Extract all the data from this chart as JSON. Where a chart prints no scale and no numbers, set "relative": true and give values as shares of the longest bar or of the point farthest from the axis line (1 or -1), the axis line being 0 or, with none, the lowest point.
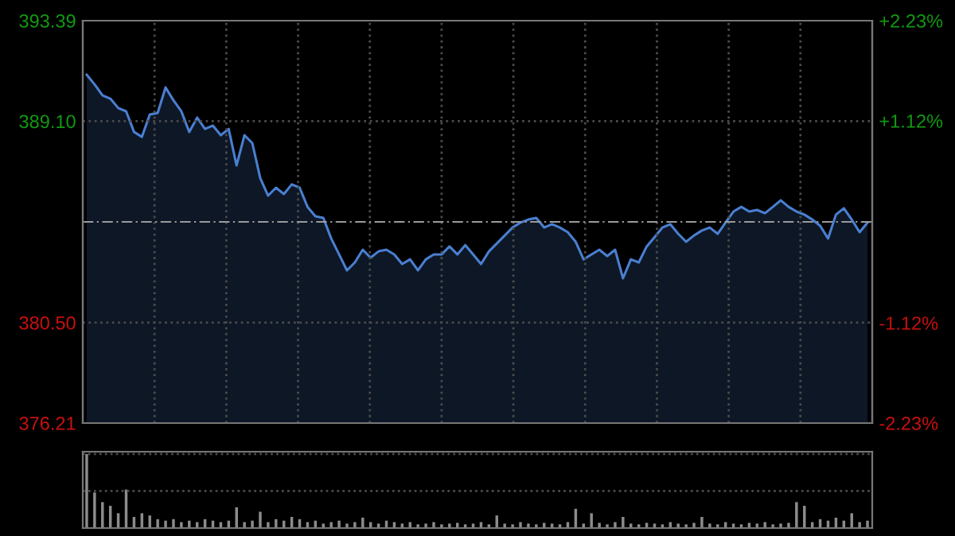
{
  "chart_data": [
    {
      "type": "area",
      "categories": [
        null,
        null,
        null,
        null,
        null,
        null,
        null,
        null,
        null,
        null,
        null,
        null,
        null,
        null,
        null,
        null,
        null,
        null,
        null,
        null,
        null,
        null,
        null,
        null,
        null,
        null,
        null,
        null,
        null,
        null,
        null,
        null,
        null,
        null,
        null,
        null,
        null,
        null,
        null,
        null,
        null,
        null,
        null,
        null,
        null,
        null,
        null,
        null,
        null,
        null,
        null,
        null,
        null,
        null,
        null,
        null,
        null,
        null,
        null,
        null,
        null,
        null,
        null,
        null,
        null,
        null,
        null,
        null,
        null,
        null,
        null,
        null,
        null,
        null,
        null,
        null,
        null,
        null,
        null,
        null,
        null,
        null,
        null,
        null,
        null,
        null,
        null,
        null,
        null,
        null,
        null,
        null,
        null,
        null,
        null,
        null,
        null,
        null,
        null,
        null
      ],
      "series": [
        {
          "color": "#4a7fd0",
          "values": [
            391.08,
            390.67,
            390.2,
            390.06,
            389.66,
            389.52,
            388.64,
            388.43,
            389.38,
            389.45,
            390.54,
            389.99,
            389.52,
            388.64,
            389.25,
            388.77,
            388.91,
            388.5,
            388.77,
            387.21,
            388.5,
            388.16,
            386.67,
            385.92,
            386.26,
            385.99,
            386.4,
            386.26,
            385.44,
            385.04,
            384.97,
            384.09,
            383.41,
            382.73,
            383.07,
            383.61,
            383.27,
            383.54,
            383.61,
            383.41,
            383.0,
            383.2,
            382.73,
            383.2,
            383.41,
            383.41,
            383.75,
            383.41,
            383.81,
            383.41,
            383.0,
            383.54,
            383.88,
            384.22,
            384.56,
            384.77,
            384.9,
            384.97,
            384.56,
            384.7,
            384.56,
            384.36,
            383.95,
            383.2,
            383.41,
            383.61,
            383.34,
            383.61,
            382.39,
            383.2,
            383.07,
            383.75,
            384.15,
            384.56,
            384.7,
            384.29,
            383.95,
            384.22,
            384.43,
            384.56,
            384.29,
            384.77,
            385.24,
            385.44,
            385.24,
            385.31,
            385.17,
            385.44,
            385.72,
            385.44,
            385.24,
            385.11,
            384.9,
            384.63,
            384.09,
            385.11,
            385.38,
            384.9,
            384.36,
            384.77
          ]
        }
      ],
      "ylim": [
        376.21,
        393.39
      ],
      "yticks": [
        393.39,
        {
          "value": 389.1,
          "label": "389.10"
        },
        {
          "value": 380.5,
          "label": "380.50"
        },
        376.21
      ],
      "y2lim": [
        -2.23,
        2.23
      ],
      "y2ticks": [
        {
          "value": 2.23,
          "label": "+2.23%"
        },
        {
          "value": 1.12,
          "label": "+1.12%"
        },
        {
          "value": -1.12,
          "label": "-1.12%"
        },
        {
          "value": -2.23,
          "label": "-2.23%"
        }
      ],
      "ref_lines": [
        {
          "axis": "y",
          "value": 384.8,
          "line_style": "dashed",
          "color": "#9a9a9a"
        }
      ],
      "grid": true
    },
    {
      "type": "bar",
      "relative": true,
      "ref_lines": [
        {
          "axis": "y",
          "value": 1.0,
          "line_style": "dotted",
          "color": "#4a4a4a"
        },
        {
          "axis": "y",
          "value": 0.5,
          "line_style": "dotted",
          "color": "#4a4a4a"
        }
      ],
      "categories": [
        null,
        null,
        null,
        null,
        null,
        null,
        null,
        null,
        null,
        null,
        null,
        null,
        null,
        null,
        null,
        null,
        null,
        null,
        null,
        null,
        null,
        null,
        null,
        null,
        null,
        null,
        null,
        null,
        null,
        null,
        null,
        null,
        null,
        null,
        null,
        null,
        null,
        null,
        null,
        null,
        null,
        null,
        null,
        null,
        null,
        null,
        null,
        null,
        null,
        null,
        null,
        null,
        null,
        null,
        null,
        null,
        null,
        null,
        null,
        null,
        null,
        null,
        null,
        null,
        null,
        null,
        null,
        null,
        null,
        null,
        null,
        null,
        null,
        null,
        null,
        null,
        null,
        null,
        null,
        null,
        null,
        null,
        null,
        null,
        null,
        null,
        null,
        null,
        null,
        null,
        null,
        null,
        null,
        null,
        null,
        null,
        null,
        null,
        null,
        null
      ],
      "color": "#8c8c8c",
      "values": [
        1.0,
        0.48,
        0.35,
        0.3,
        0.2,
        0.52,
        0.15,
        0.2,
        0.17,
        0.12,
        0.1,
        0.12,
        0.08,
        0.1,
        0.08,
        0.12,
        0.1,
        0.08,
        0.1,
        0.28,
        0.08,
        0.1,
        0.22,
        0.08,
        0.12,
        0.1,
        0.15,
        0.12,
        0.08,
        0.1,
        0.06,
        0.08,
        0.1,
        0.06,
        0.08,
        0.14,
        0.08,
        0.06,
        0.1,
        0.08,
        0.06,
        0.08,
        0.05,
        0.06,
        0.08,
        0.05,
        0.06,
        0.07,
        0.05,
        0.06,
        0.08,
        0.05,
        0.17,
        0.06,
        0.05,
        0.08,
        0.06,
        0.05,
        0.07,
        0.06,
        0.05,
        0.08,
        0.26,
        0.06,
        0.2,
        0.07,
        0.05,
        0.08,
        0.15,
        0.06,
        0.05,
        0.07,
        0.06,
        0.05,
        0.08,
        0.06,
        0.05,
        0.07,
        0.15,
        0.06,
        0.05,
        0.08,
        0.06,
        0.05,
        0.07,
        0.06,
        0.08,
        0.05,
        0.06,
        0.07,
        0.35,
        0.3,
        0.08,
        0.12,
        0.1,
        0.14,
        0.1,
        0.2,
        0.08,
        0.1
      ]
    }
  ]
}
